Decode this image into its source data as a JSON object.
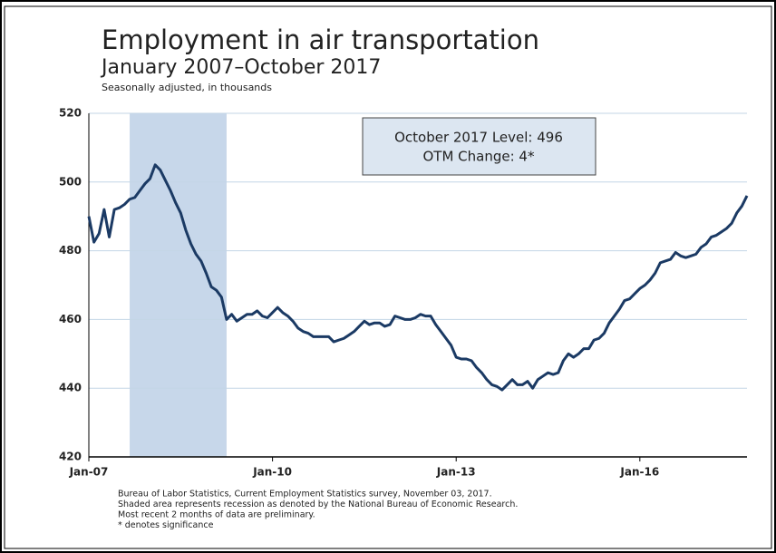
{
  "chart_data": {
    "type": "line",
    "title": "Employment in air transportation",
    "subtitle": "January 2007–October 2017",
    "note": "Seasonally adjusted, in thousands",
    "annotation": [
      "October 2017 Level: 496",
      "OTM Change: 4*"
    ],
    "footnotes": [
      "Bureau of Labor Statistics, Current Employment Statistics survey, November 03, 2017.",
      "Shaded area represents recession as denoted by the National Bureau of Economic Research.",
      "Most recent 2 months of data are preliminary.",
      "* denotes significance"
    ],
    "categories": [
      "Jan-07",
      null,
      null,
      null,
      null,
      null,
      null,
      null,
      null,
      null,
      null,
      null,
      null,
      null,
      null,
      null,
      null,
      null,
      null,
      null,
      null,
      null,
      null,
      null,
      null,
      null,
      null,
      null,
      null,
      null,
      null,
      null,
      null,
      null,
      null,
      null,
      "Jan-10",
      null,
      null,
      null,
      null,
      null,
      null,
      null,
      null,
      null,
      null,
      null,
      null,
      null,
      null,
      null,
      null,
      null,
      null,
      null,
      null,
      null,
      null,
      null,
      null,
      null,
      null,
      null,
      null,
      null,
      null,
      null,
      null,
      null,
      null,
      null,
      "Jan-13",
      null,
      null,
      null,
      null,
      null,
      null,
      null,
      null,
      null,
      null,
      null,
      null,
      null,
      null,
      null,
      null,
      null,
      null,
      null,
      null,
      null,
      null,
      null,
      null,
      null,
      null,
      null,
      null,
      null,
      null,
      null,
      null,
      null,
      null,
      null,
      "Jan-16",
      null,
      null,
      null,
      null,
      null,
      null,
      null,
      null,
      null,
      null,
      null,
      null,
      null,
      null,
      null,
      null,
      null,
      null,
      null,
      null,
      null
    ],
    "values": [
      490,
      482.5,
      485,
      492,
      484,
      492,
      492.5,
      493.5,
      495,
      495.5,
      497.5,
      499.5,
      501,
      505,
      503.5,
      500.5,
      497.5,
      494,
      491,
      486,
      482,
      479,
      477,
      473.5,
      469.5,
      468.5,
      466.5,
      460,
      461.5,
      459.5,
      460.5,
      461.5,
      461.5,
      462.5,
      461,
      460.5,
      462,
      463.5,
      462,
      461,
      459.5,
      457.5,
      456.5,
      456,
      455,
      455,
      455,
      455,
      453.5,
      454,
      454.5,
      455.5,
      456.5,
      458,
      459.5,
      458.5,
      459,
      459,
      458,
      458.5,
      461,
      460.5,
      460,
      460,
      460.5,
      461.5,
      461,
      461,
      458.5,
      456.5,
      454.5,
      452.5,
      449,
      448.5,
      448.5,
      448,
      446,
      444.5,
      442.5,
      441,
      440.5,
      439.5,
      441,
      442.5,
      441,
      441,
      442,
      440,
      442.5,
      443.5,
      444.5,
      444,
      444.5,
      448,
      450,
      449,
      450,
      451.5,
      451.5,
      454,
      454.5,
      456,
      459,
      461,
      463,
      465.5,
      466,
      467.5,
      469,
      470,
      471.5,
      473.5,
      476.5,
      477,
      477.5,
      479.5,
      478.5,
      478,
      478.5,
      479,
      481,
      482,
      484,
      484.5,
      485.5,
      486.5,
      488,
      491,
      493,
      496
    ],
    "color": "#1b3a64",
    "recession_range": [
      8,
      27
    ],
    "ylim": [
      420,
      520
    ],
    "yticks": [
      420,
      440,
      460,
      480,
      500,
      520
    ],
    "grid": true
  }
}
